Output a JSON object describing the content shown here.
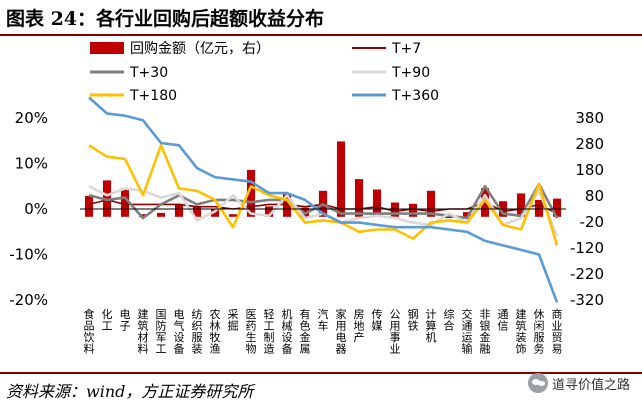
{
  "title": "图表 24：各行业回购后超额收益分布",
  "source": "资料来源：wind，方正证券研究所",
  "watermark": "道寻价值之路",
  "chart_data": {
    "type": "bar+line",
    "categories": [
      "食品饮料",
      "化工",
      "电子",
      "建筑材料",
      "国防军工",
      "电气设备",
      "纺织服装",
      "农林牧渔",
      "采掘",
      "医药生物",
      "轻工制造",
      "机械设备",
      "有色金属",
      "汽车",
      "家用电器",
      "房地产",
      "传媒",
      "公用事业",
      "钢铁",
      "计算机",
      "综合",
      "交通运输",
      "非银金融",
      "通信",
      "建筑装饰",
      "休闲服务",
      "商业贸易"
    ],
    "left_axis": {
      "min": -20,
      "max": 20,
      "ticks": [
        20,
        10,
        0,
        -10,
        -20
      ],
      "tick_labels": [
        "20%",
        "10%",
        "0%",
        "-10%",
        "-20%"
      ]
    },
    "right_axis": {
      "min": -320,
      "max": 380,
      "ticks": [
        380,
        280,
        180,
        80,
        -20,
        -120,
        -220,
        -320
      ],
      "tick_labels": [
        "380",
        "280",
        "180",
        "80",
        "-20",
        "-120",
        "-220",
        "-320"
      ]
    },
    "series": [
      {
        "name": "回购金额（亿元，右）",
        "type": "bar",
        "axis": "right",
        "color": "#c00000",
        "values": [
          80,
          140,
          110,
          10,
          15,
          50,
          40,
          30,
          10,
          180,
          40,
          90,
          35,
          100,
          290,
          145,
          105,
          55,
          50,
          100,
          -5,
          18,
          110,
          60,
          90,
          65,
          70
        ]
      },
      {
        "name": "T+7",
        "type": "line",
        "axis": "left",
        "color": "#8b0000",
        "values": [
          1,
          2,
          1,
          1,
          1,
          1,
          0.5,
          0.5,
          0,
          0.5,
          1,
          1,
          0.5,
          1,
          0,
          0,
          0.5,
          -0.5,
          0,
          -0.5,
          0,
          0,
          1.5,
          -0.5,
          0,
          1,
          -1
        ]
      },
      {
        "name": "T+30",
        "type": "line",
        "axis": "left",
        "color": "#7f7f7f",
        "values": [
          3,
          2,
          2.5,
          -2,
          1,
          3,
          1,
          2,
          2,
          1.5,
          2,
          2,
          -1,
          1,
          -1,
          -1,
          -1,
          -1,
          -1,
          -1,
          -1.5,
          -2,
          5,
          -1,
          -1.5,
          5.5,
          -2
        ]
      },
      {
        "name": "T+90",
        "type": "line",
        "axis": "left",
        "color": "#d9d9d9",
        "values": [
          5,
          3,
          4.5,
          4,
          2.5,
          3.5,
          -2.5,
          -0.5,
          3,
          -1,
          -1.5,
          3,
          -2,
          -1,
          -3,
          -2,
          -1.5,
          -2,
          -3,
          -3.5,
          -1,
          -3,
          3,
          -3.5,
          -2,
          4,
          -6
        ]
      },
      {
        "name": "T+180",
        "type": "line",
        "axis": "left",
        "color": "#ffc000",
        "values": [
          14,
          11.5,
          11,
          3,
          14,
          4.5,
          4,
          2,
          -4,
          5,
          3,
          2,
          -3,
          -2.5,
          -3,
          -5,
          -4.5,
          -4.5,
          -6.5,
          -3,
          -2.5,
          -3,
          2,
          -3.5,
          -4.5,
          5.5,
          -8
        ]
      },
      {
        "name": "T+360",
        "type": "line",
        "axis": "left",
        "color": "#5b9bd5",
        "values": [
          24.5,
          21,
          20.5,
          19.5,
          14.5,
          14,
          9,
          7,
          6.5,
          6,
          3.5,
          3.5,
          2,
          -1,
          -3,
          -3,
          -3.5,
          -4,
          -4,
          -4,
          -4.5,
          -5,
          -7,
          -8,
          -9,
          -10,
          -20.5
        ]
      }
    ],
    "legend": [
      "回购金额（亿元，右）",
      "T+7",
      "T+30",
      "T+90",
      "T+180",
      "T+360"
    ]
  }
}
